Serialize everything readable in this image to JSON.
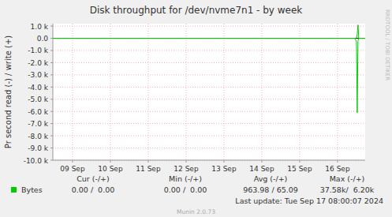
{
  "chart_data": {
    "type": "line",
    "title": "Disk throughput for /dev/nvme7n1 - by week",
    "y_label": "Pr second read (-) / write (+)",
    "x": [
      8.98,
      16.95,
      16.98,
      17.0,
      17.02,
      17.04,
      17.06,
      17.23
    ],
    "series": [
      {
        "name": "Bytes",
        "color": "#00cc00",
        "values": [
          0,
          0,
          -150,
          -300,
          -6100,
          -200,
          0,
          0
        ]
      },
      {
        "color": "#00cc00",
        "values": [
          0,
          0,
          0,
          50,
          300,
          1100,
          0,
          0
        ]
      }
    ],
    "xlim": [
      8.98,
      17.23
    ],
    "xticks": [
      {
        "value": 9.5,
        "label": "09 Sep"
      },
      {
        "value": 10.5,
        "label": "10 Sep"
      },
      {
        "value": 11.5,
        "label": "11 Sep"
      },
      {
        "value": 12.5,
        "label": "12 Sep"
      },
      {
        "value": 13.5,
        "label": "13 Sep"
      },
      {
        "value": 14.5,
        "label": "14 Sep"
      },
      {
        "value": 15.5,
        "label": "15 Sep"
      },
      {
        "value": 16.5,
        "label": "16 Sep"
      }
    ],
    "ylim": [
      -10000,
      1200
    ],
    "yticks": [
      {
        "value": 1000,
        "label": "1.0 k"
      },
      {
        "value": 0,
        "label": "0.0"
      },
      {
        "value": -1000,
        "label": "-1.0 k"
      },
      {
        "value": -2000,
        "label": "-2.0 k"
      },
      {
        "value": -3000,
        "label": "-3.0 k"
      },
      {
        "value": -4000,
        "label": "-4.0 k"
      },
      {
        "value": -5000,
        "label": "-5.0 k"
      },
      {
        "value": -6000,
        "label": "-6.0 k"
      },
      {
        "value": -7000,
        "label": "-7.0 k"
      },
      {
        "value": -8000,
        "label": "-8.0 k"
      },
      {
        "value": -9000,
        "label": "-9.0 k"
      },
      {
        "value": -10000,
        "label": "-10.0 k"
      }
    ],
    "grid": true,
    "stats": {
      "headers": [
        "Cur (-/+)",
        "Min (-/+)",
        "Avg (-/+)",
        "Max (-/+)"
      ],
      "rows": [
        {
          "label": "Bytes",
          "values": [
            "0.00 /  0.00",
            "0.00 /  0.00",
            "963.98 / 65.09",
            "37.58k/  6.20k"
          ]
        }
      ]
    },
    "last_update": "Last update: Tue Sep 17 08:00:07 2024",
    "footer": "Munin 2.0.73",
    "watermark": "RRDTOOL / TOBI OETIKER"
  }
}
